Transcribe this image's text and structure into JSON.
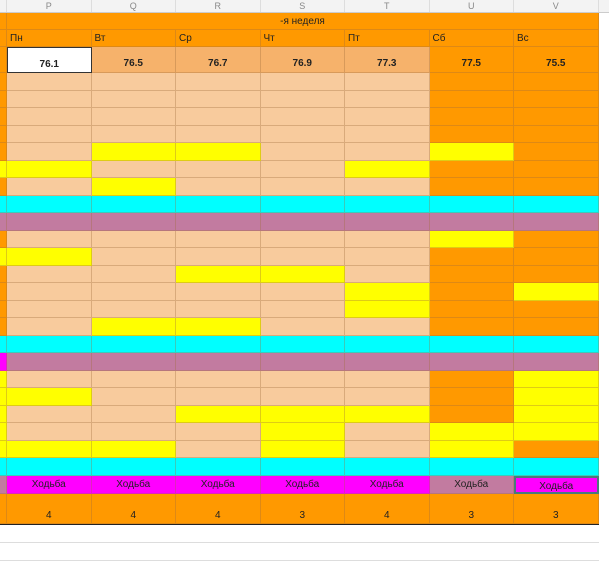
{
  "columns": [
    "P",
    "Q",
    "R",
    "S",
    "T",
    "U",
    "V"
  ],
  "week_title": "-я неделя",
  "days": [
    "Пн",
    "Вт",
    "Ср",
    "Чт",
    "Пт",
    "Сб",
    "Вс"
  ],
  "weights": [
    "76.1",
    "76.5",
    "76.7",
    "76.9",
    "77.3",
    "77.5",
    "75.5"
  ],
  "activity": [
    "Ходьба",
    "Ходьба",
    "Ходьба",
    "Ходьба",
    "Ходьба",
    "Ходьба",
    "Ходьба"
  ],
  "counts": [
    "4",
    "4",
    "4",
    "3",
    "4",
    "3",
    "3"
  ],
  "colors": {
    "peach": "#f8cb9d",
    "yellow": "#ffff00",
    "orange": "#ff9900",
    "cyan": "#00ffff",
    "mauve": "#c27ba0",
    "magenta": "#ff00ff"
  },
  "grid_rows": [
    "opppppoo",
    "opppppoo",
    "opppppoo",
    "opppppoo",
    "opyyppyo",
    "yypppyoo",
    "opypppoo",
    "cccccccc",
    "mmmmmmmm",
    "opppppyo",
    "yyppppoo",
    "oppyypoo",
    "oppppyoy",
    "oppppyoo",
    "opyyppoo",
    "cccccccc",
    "Mmmmmmmm",
    "ypppppoy",
    "yyppppoy",
    "yppyyyoy",
    "ypppypyy",
    "yyypypyo",
    "cccccccc"
  ]
}
